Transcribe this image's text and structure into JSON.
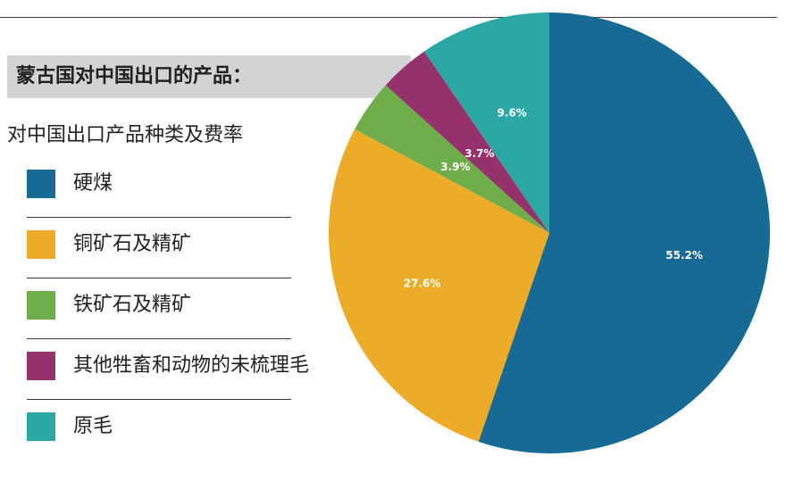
{
  "header": {
    "title": "蒙古国对中国出口的产品：",
    "subtitle": "对中国出口产品种类及费率"
  },
  "chart_data": {
    "type": "pie",
    "categories": [
      "硬煤",
      "铜矿石及精矿",
      "铁矿石及精矿",
      "其他牲畜和动物的未梳理毛",
      "原毛"
    ],
    "values": [
      55.2,
      27.6,
      3.9,
      3.7,
      9.6
    ],
    "value_labels": [
      "55.2%",
      "27.6%",
      "3.9%",
      "3.7%",
      "9.6%"
    ],
    "colors": [
      "#166a93",
      "#ecac27",
      "#6fad4a",
      "#96326b",
      "#2ba7a4"
    ],
    "start": "12 o'clock",
    "direction": "clockwise",
    "legend_position": "left"
  }
}
